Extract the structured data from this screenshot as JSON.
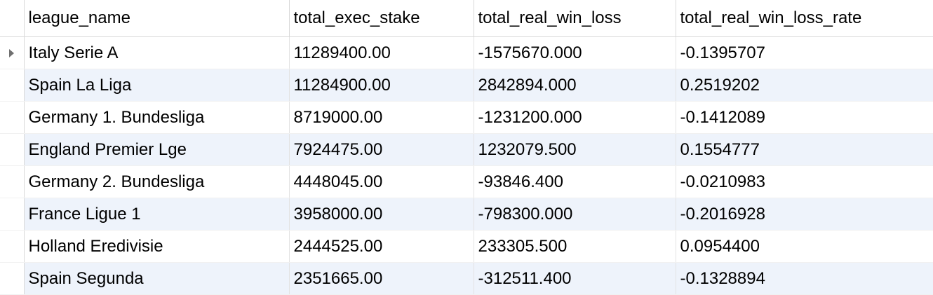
{
  "grid": {
    "columns": [
      "league_name",
      "total_exec_stake",
      "total_real_win_loss",
      "total_real_win_loss_rate"
    ],
    "current_row_indicator": "row-pointer-icon",
    "rows": [
      {
        "league_name": "Italy Serie A",
        "total_exec_stake": "11289400.00",
        "total_real_win_loss": "-1575670.000",
        "total_real_win_loss_rate": "-0.1395707"
      },
      {
        "league_name": "Spain La Liga",
        "total_exec_stake": "11284900.00",
        "total_real_win_loss": "2842894.000",
        "total_real_win_loss_rate": "0.2519202"
      },
      {
        "league_name": "Germany 1. Bundesliga",
        "total_exec_stake": "8719000.00",
        "total_real_win_loss": "-1231200.000",
        "total_real_win_loss_rate": "-0.1412089"
      },
      {
        "league_name": "England Premier Lge",
        "total_exec_stake": "7924475.00",
        "total_real_win_loss": "1232079.500",
        "total_real_win_loss_rate": "0.1554777"
      },
      {
        "league_name": "Germany 2. Bundesliga",
        "total_exec_stake": "4448045.00",
        "total_real_win_loss": "-93846.400",
        "total_real_win_loss_rate": "-0.0210983"
      },
      {
        "league_name": "France Ligue 1",
        "total_exec_stake": "3958000.00",
        "total_real_win_loss": "-798300.000",
        "total_real_win_loss_rate": "-0.2016928"
      },
      {
        "league_name": "Holland Eredivisie",
        "total_exec_stake": "2444525.00",
        "total_real_win_loss": "233305.500",
        "total_real_win_loss_rate": "0.0954400"
      },
      {
        "league_name": "Spain Segunda",
        "total_exec_stake": "2351665.00",
        "total_real_win_loss": "-312511.400",
        "total_real_win_loss_rate": "-0.1328894"
      }
    ],
    "alt_row_color": "#eef3fb"
  }
}
